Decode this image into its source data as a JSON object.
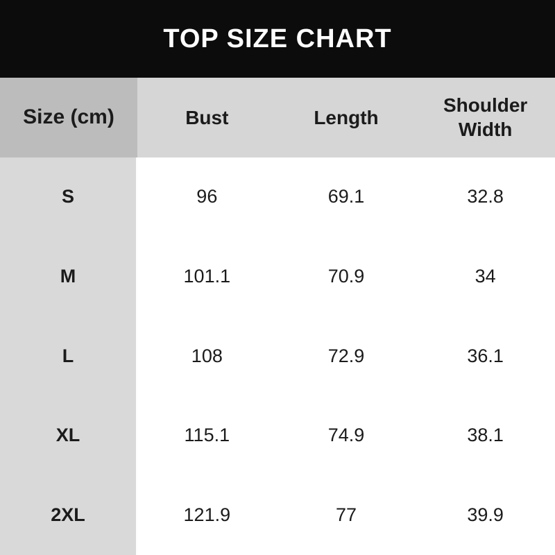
{
  "title": "TOP SIZE CHART",
  "table": {
    "header": {
      "size_label": "Size (cm)",
      "columns": [
        "Bust",
        "Length",
        "Shoulder Width"
      ]
    },
    "rows": [
      {
        "size": "S",
        "values": [
          "96",
          "69.1",
          "32.8"
        ]
      },
      {
        "size": "M",
        "values": [
          "101.1",
          "70.9",
          "34"
        ]
      },
      {
        "size": "L",
        "values": [
          "108",
          "72.9",
          "36.1"
        ]
      },
      {
        "size": "XL",
        "values": [
          "115.1",
          "74.9",
          "38.1"
        ]
      },
      {
        "size": "2XL",
        "values": [
          "121.9",
          "77",
          "39.9"
        ]
      }
    ]
  },
  "chart_data": {
    "type": "table",
    "title": "TOP SIZE CHART",
    "unit": "cm",
    "columns": [
      "Size (cm)",
      "Bust",
      "Length",
      "Shoulder Width"
    ],
    "rows": [
      [
        "S",
        96,
        69.1,
        32.8
      ],
      [
        "M",
        101.1,
        70.9,
        34
      ],
      [
        "L",
        108,
        72.9,
        36.1
      ],
      [
        "XL",
        115.1,
        74.9,
        38.1
      ],
      [
        "2XL",
        121.9,
        77,
        39.9
      ]
    ]
  },
  "colors": {
    "title_bar_bg": "#0c0c0c",
    "title_text": "#ffffff",
    "header_size_cell_bg": "#bcbcbc",
    "header_data_bg": "#d6d6d6",
    "row_label_bg": "#d9d9d9",
    "row_alt_white": "#ffffff",
    "row_alt_gray": "#f1f1f1",
    "cell_text": "#1b1b1b"
  }
}
